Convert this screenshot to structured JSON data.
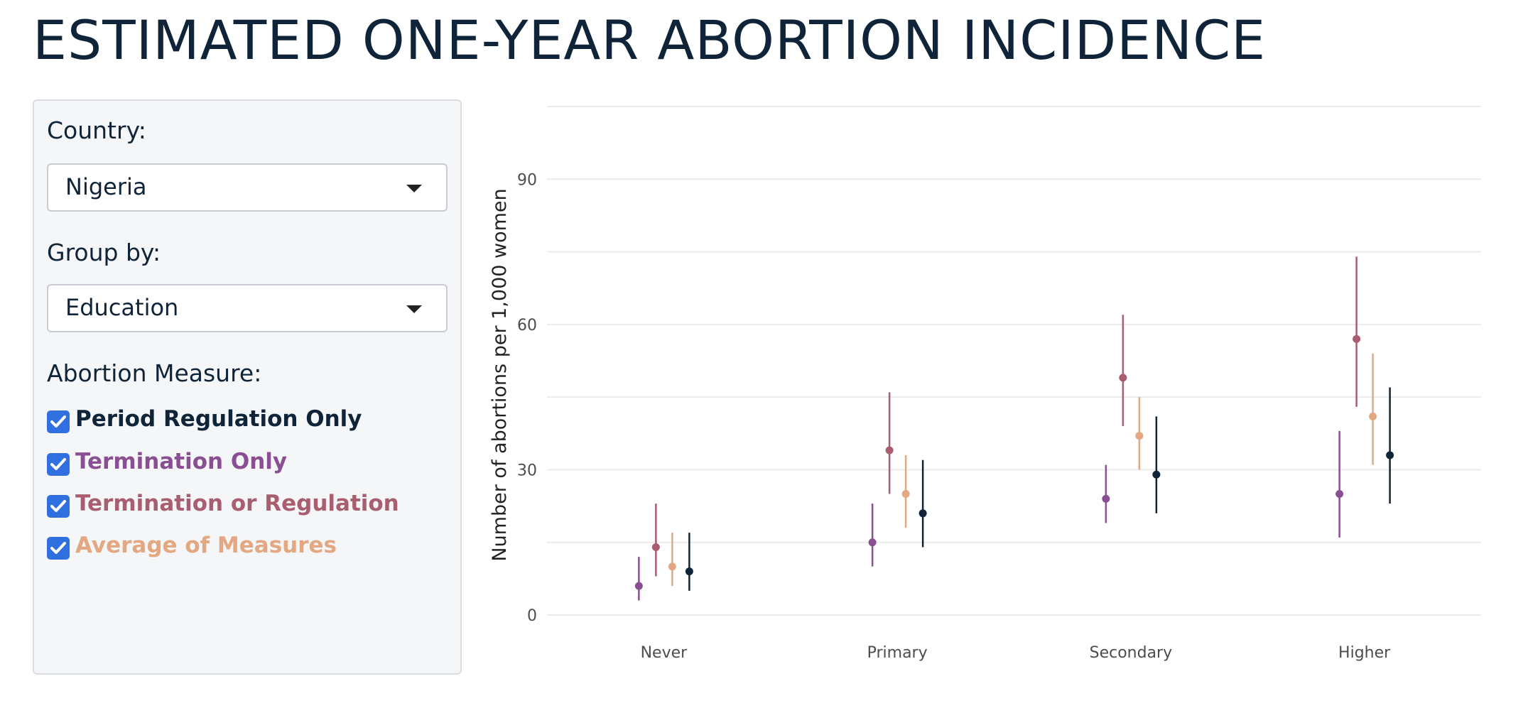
{
  "page": {
    "title": "ESTIMATED ONE-YEAR ABORTION INCIDENCE"
  },
  "sidebar": {
    "country_label": "Country:",
    "country_value": "Nigeria",
    "group_label": "Group by:",
    "group_value": "Education",
    "measure_label": "Abortion Measure:",
    "measures": [
      {
        "label": "Period Regulation Only",
        "checked": true,
        "color": "#0f2438"
      },
      {
        "label": "Termination Only",
        "checked": true,
        "color": "#8a4f93"
      },
      {
        "label": "Termination or Regulation",
        "checked": true,
        "color": "#a85e6f"
      },
      {
        "label": "Average of Measures",
        "checked": true,
        "color": "#e3a881"
      }
    ],
    "checkbox_color": "#2f6fe0"
  },
  "chart_data": {
    "type": "scatter",
    "ylabel": "Number of abortions per 1,000 women",
    "xlabel": "",
    "categories": [
      "Never",
      "Primary",
      "Secondary",
      "Higher"
    ],
    "ylim": [
      0,
      105
    ],
    "yticks": [
      0,
      30,
      60,
      90
    ],
    "grid": true,
    "series": [
      {
        "name": "Termination Only",
        "color": "#8a4f93",
        "values": [
          6,
          15,
          24,
          25
        ],
        "lower": [
          3,
          10,
          19,
          16
        ],
        "upper": [
          12,
          23,
          31,
          38
        ]
      },
      {
        "name": "Termination or Regulation",
        "color": "#a85e6f",
        "values": [
          14,
          34,
          49,
          57
        ],
        "lower": [
          8,
          25,
          39,
          43
        ],
        "upper": [
          23,
          46,
          62,
          74
        ]
      },
      {
        "name": "Average of Measures",
        "color": "#e3a881",
        "values": [
          10,
          25,
          37,
          41
        ],
        "lower": [
          6,
          18,
          30,
          31
        ],
        "upper": [
          17,
          33,
          45,
          54
        ]
      },
      {
        "name": "Period Regulation Only",
        "color": "#0f2438",
        "values": [
          9,
          21,
          29,
          33
        ],
        "lower": [
          5,
          14,
          21,
          23
        ],
        "upper": [
          17,
          32,
          41,
          47
        ]
      }
    ]
  }
}
